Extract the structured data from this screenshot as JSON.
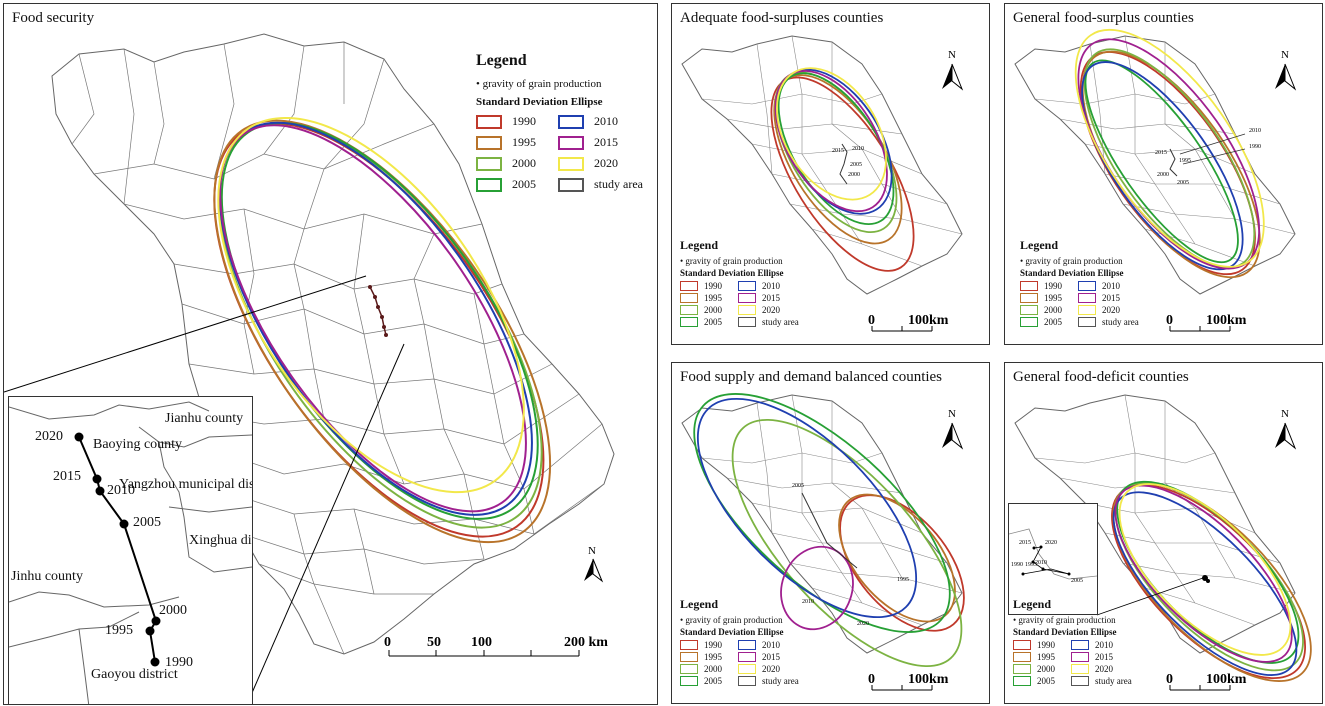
{
  "legend": {
    "title": "Legend",
    "gravity_label": "gravity of grain production",
    "sde_label": "Standard Deviation Ellipse",
    "items": [
      {
        "label": "1990",
        "color": "#c0392b"
      },
      {
        "label": "2010",
        "color": "#1f3fb0"
      },
      {
        "label": "1995",
        "color": "#b8732a"
      },
      {
        "label": "2015",
        "color": "#a0208f"
      },
      {
        "label": "2000",
        "color": "#7cb342"
      },
      {
        "label": "2020",
        "color": "#f2e84a"
      },
      {
        "label": "2005",
        "color": "#27a035"
      },
      {
        "label": "study area",
        "color": "#555555"
      }
    ]
  },
  "main_map": {
    "title": "Food security",
    "north_label": "N",
    "scale": {
      "ticks": [
        "0",
        "50",
        "100",
        "200 km"
      ]
    },
    "inset": {
      "places": [
        "Jianhu county",
        "Baoying county",
        "Yangzhou  municipal district",
        "Xinghua district",
        "Jinhu county",
        "Gaoyou district"
      ],
      "years": [
        "2020",
        "2015",
        "2010",
        "2005",
        "2000",
        "1995",
        "1990"
      ]
    }
  },
  "sub_maps": [
    {
      "title": "Adequate food-surpluses counties",
      "north_label": "N",
      "scale": {
        "ticks": [
          "0",
          "100km"
        ]
      },
      "labels": [
        "2015",
        "2010",
        "2005",
        "2000"
      ]
    },
    {
      "title": "General food-surplus counties",
      "north_label": "N",
      "scale": {
        "ticks": [
          "0",
          "100km"
        ]
      },
      "labels": [
        "2010",
        "1990",
        "2015",
        "1995",
        "2000",
        "2005"
      ]
    },
    {
      "title": "Food supply and demand balanced counties",
      "north_label": "N",
      "scale": {
        "ticks": [
          "0",
          "100km"
        ]
      },
      "labels": [
        "2005",
        "2010",
        "1995",
        "2020"
      ]
    },
    {
      "title": "General food-deficit counties",
      "north_label": "N",
      "scale": {
        "ticks": [
          "0",
          "100km"
        ]
      },
      "labels": [
        "2015",
        "2020",
        "1990",
        "1995",
        "2010",
        "2005"
      ]
    }
  ]
}
